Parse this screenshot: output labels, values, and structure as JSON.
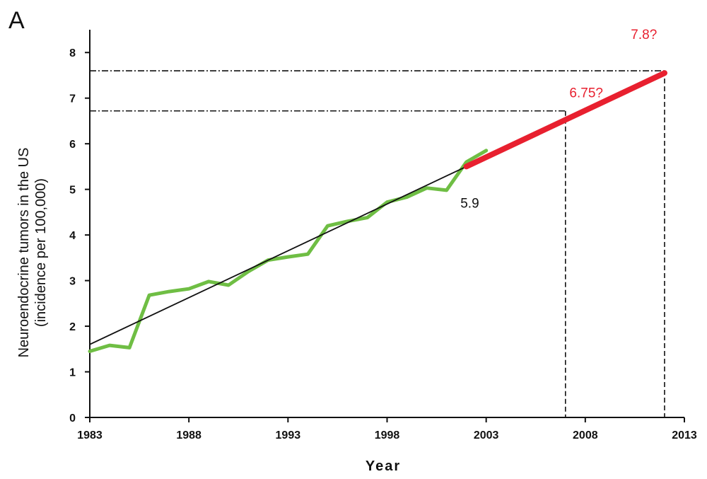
{
  "panel_label": "A",
  "colors": {
    "observed": "#6fbe44",
    "projection": "#e8202f",
    "trend": "#111111",
    "reference": "#111111"
  },
  "chart_data": {
    "type": "line",
    "xlabel": "Year",
    "ylabel_lines": [
      "Neuroendocrine tumors in the US",
      "(incidence per 100,000)"
    ],
    "xlim": [
      1983,
      2013
    ],
    "ylim": [
      0,
      8.5
    ],
    "x_ticks": [
      1983,
      1988,
      1993,
      1998,
      2003,
      2008,
      2013
    ],
    "x_tick_labels": [
      "1983",
      "1988",
      "1993",
      "1998",
      "2003",
      "2008",
      "2013"
    ],
    "y_ticks": [
      0,
      1,
      2,
      3,
      4,
      5,
      6,
      7,
      8
    ],
    "y_tick_labels": [
      "0",
      "1",
      "2",
      "3",
      "4",
      "5",
      "6",
      "7",
      "8"
    ],
    "grid": false,
    "series": [
      {
        "role": "observed",
        "x": [
          1983,
          1984,
          1985,
          1986,
          1987,
          1988,
          1989,
          1990,
          1991,
          1992,
          1993,
          1994,
          1995,
          1996,
          1997,
          1998,
          1999,
          2000,
          2001,
          2002,
          2003
        ],
        "y": [
          1.45,
          1.58,
          1.53,
          2.68,
          2.76,
          2.82,
          2.98,
          2.9,
          3.2,
          3.45,
          3.52,
          3.58,
          4.2,
          4.3,
          4.38,
          4.72,
          4.83,
          5.03,
          4.98,
          5.6,
          5.85
        ]
      },
      {
        "role": "trend",
        "x": [
          1983,
          2002
        ],
        "y": [
          1.6,
          5.5
        ]
      },
      {
        "role": "projection",
        "x": [
          2002,
          2012
        ],
        "y": [
          5.5,
          7.55
        ]
      }
    ],
    "reference_lines": [
      {
        "year": 2007,
        "value": 6.72
      },
      {
        "year": 2012,
        "value": 7.6
      }
    ],
    "annotations": [
      {
        "text": "5.9",
        "x": 2001.7,
        "y": 4.6,
        "color": "#111111"
      },
      {
        "text": "6.75?",
        "x": 2007.2,
        "y": 7.02,
        "color": "#e8202f"
      },
      {
        "text": "7.8?",
        "x": 2010.3,
        "y": 8.3,
        "color": "#e8202f"
      }
    ]
  }
}
